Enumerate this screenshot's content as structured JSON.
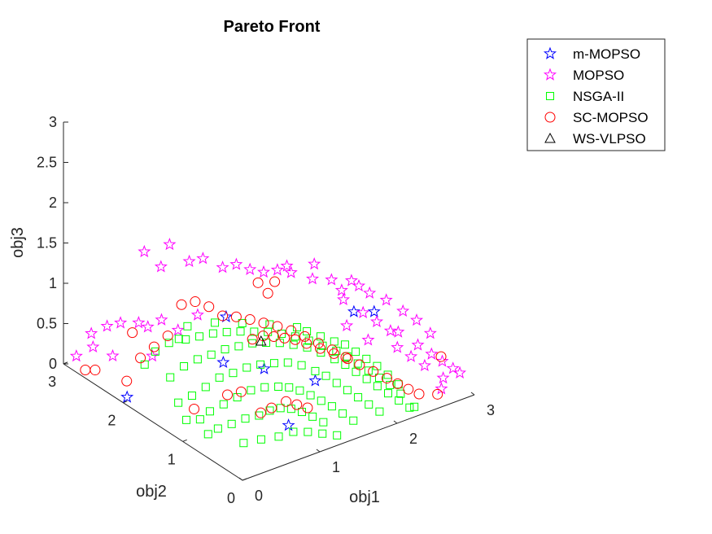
{
  "chart_data": {
    "type": "scatter",
    "title": "Pareto Front",
    "xlabel": "obj1",
    "ylabel": "obj2",
    "zlabel": "obj3",
    "xlim": [
      0,
      3
    ],
    "ylim": [
      0,
      3
    ],
    "zlim": [
      0,
      3
    ],
    "xticks": [
      "0",
      "1",
      "2",
      "3"
    ],
    "yticks": [
      "0",
      "1",
      "2",
      "3"
    ],
    "zticks": [
      "0",
      "0.5",
      "1",
      "1.5",
      "2",
      "2.5",
      "3"
    ],
    "grid": false,
    "legend_position": "top-right",
    "series": [
      {
        "name": "m-MOPSO",
        "marker": "star",
        "color": "#0000ff",
        "points": [
          [
            0.05,
            2.0,
            0.05
          ],
          [
            0.6,
            1.1,
            0.72
          ],
          [
            2.05,
            0.45,
            1.15
          ],
          [
            1.75,
            0.4,
            1.28
          ],
          [
            1.1,
            1.7,
            0.82
          ],
          [
            0.55,
            0.35,
            1.02
          ],
          [
            0.75,
            0.2,
            0.32
          ],
          [
            1.25,
            0.4,
            0.6
          ]
        ]
      },
      {
        "name": "MOPSO",
        "marker": "star",
        "color": "#ff00ff",
        "points": [
          [
            0.05,
            2.6,
            0.55
          ],
          [
            0.1,
            2.4,
            0.72
          ],
          [
            0.12,
            2.2,
            0.85
          ],
          [
            0.2,
            2.0,
            0.92
          ],
          [
            0.15,
            2.7,
            0.3
          ],
          [
            0.3,
            1.9,
            0.52
          ],
          [
            0.05,
            2.85,
            0.15
          ],
          [
            0.25,
            2.5,
            0.25
          ],
          [
            0.4,
            1.6,
            0.95
          ],
          [
            0.5,
            1.4,
            1.2
          ],
          [
            0.6,
            2.0,
            1.75
          ],
          [
            0.7,
            1.8,
            1.6
          ],
          [
            0.8,
            1.7,
            1.65
          ],
          [
            0.9,
            1.5,
            1.6
          ],
          [
            1.0,
            1.4,
            1.65
          ],
          [
            1.1,
            1.3,
            1.6
          ],
          [
            1.2,
            1.2,
            1.58
          ],
          [
            1.3,
            1.1,
            1.62
          ],
          [
            1.4,
            1.0,
            1.6
          ],
          [
            1.5,
            1.2,
            1.55
          ],
          [
            0.35,
            2.1,
            1.7
          ],
          [
            0.45,
            1.95,
            1.55
          ],
          [
            1.6,
            0.9,
            1.5
          ],
          [
            1.7,
            1.0,
            1.6
          ],
          [
            1.9,
            0.8,
            1.3
          ],
          [
            2.0,
            0.9,
            1.1
          ],
          [
            2.1,
            0.7,
            1.0
          ],
          [
            2.2,
            0.6,
            0.9
          ],
          [
            2.3,
            0.5,
            0.8
          ],
          [
            2.4,
            0.5,
            0.75
          ],
          [
            2.5,
            0.3,
            0.65
          ],
          [
            2.6,
            0.2,
            0.55
          ],
          [
            2.7,
            0.15,
            0.45
          ],
          [
            2.8,
            0.1,
            0.35
          ],
          [
            2.85,
            0.05,
            0.3
          ],
          [
            2.5,
            0.55,
            0.95
          ],
          [
            2.6,
            0.45,
            0.85
          ],
          [
            2.7,
            0.35,
            0.7
          ],
          [
            2.4,
            0.7,
            1.05
          ],
          [
            2.3,
            0.85,
            1.1
          ],
          [
            2.2,
            0.9,
            1.2
          ],
          [
            2.0,
            1.1,
            1.25
          ],
          [
            1.95,
            0.7,
            1.45
          ],
          [
            2.75,
            0.2,
            0.2
          ],
          [
            2.65,
            0.1,
            0.15
          ],
          [
            2.55,
            0.25,
            0.4
          ],
          [
            2.45,
            0.35,
            0.5
          ],
          [
            2.35,
            0.45,
            0.6
          ],
          [
            1.85,
            0.65,
            0.95
          ],
          [
            2.05,
            0.55,
            0.75
          ],
          [
            0.55,
            2.3,
            0.6
          ],
          [
            0.65,
            2.2,
            0.7
          ]
        ]
      },
      {
        "name": "NSGA-II",
        "marker": "square",
        "color": "#00ff00",
        "points": [
          [
            0.3,
            1.6,
            0.4
          ],
          [
            0.4,
            1.5,
            0.55
          ],
          [
            0.5,
            1.4,
            0.65
          ],
          [
            0.6,
            1.3,
            0.72
          ],
          [
            0.7,
            1.2,
            0.8
          ],
          [
            0.8,
            1.1,
            0.85
          ],
          [
            0.9,
            1.0,
            0.9
          ],
          [
            1.0,
            0.9,
            0.92
          ],
          [
            1.1,
            0.8,
            0.93
          ],
          [
            1.2,
            0.7,
            0.92
          ],
          [
            1.3,
            0.6,
            0.9
          ],
          [
            1.4,
            0.5,
            0.85
          ],
          [
            1.5,
            0.4,
            0.78
          ],
          [
            1.6,
            0.35,
            0.7
          ],
          [
            1.7,
            0.3,
            0.6
          ],
          [
            1.8,
            0.25,
            0.5
          ],
          [
            1.9,
            0.2,
            0.4
          ],
          [
            2.0,
            0.15,
            0.3
          ],
          [
            2.1,
            0.1,
            0.2
          ],
          [
            2.2,
            0.05,
            0.1
          ],
          [
            0.35,
            1.3,
            0.3
          ],
          [
            0.45,
            1.2,
            0.42
          ],
          [
            0.55,
            1.1,
            0.55
          ],
          [
            0.65,
            1.0,
            0.62
          ],
          [
            0.75,
            0.9,
            0.7
          ],
          [
            0.85,
            0.8,
            0.75
          ],
          [
            0.95,
            0.7,
            0.78
          ],
          [
            1.05,
            0.6,
            0.8
          ],
          [
            1.15,
            0.5,
            0.78
          ],
          [
            1.25,
            0.4,
            0.72
          ],
          [
            1.35,
            0.35,
            0.65
          ],
          [
            1.45,
            0.3,
            0.55
          ],
          [
            1.55,
            0.25,
            0.45
          ],
          [
            1.65,
            0.2,
            0.35
          ],
          [
            1.75,
            0.15,
            0.25
          ],
          [
            1.85,
            0.1,
            0.15
          ],
          [
            0.25,
            1.4,
            0.2
          ],
          [
            0.35,
            1.0,
            0.25
          ],
          [
            0.45,
            0.9,
            0.35
          ],
          [
            0.55,
            0.8,
            0.45
          ],
          [
            0.65,
            0.7,
            0.55
          ],
          [
            0.75,
            0.6,
            0.6
          ],
          [
            0.85,
            0.5,
            0.62
          ],
          [
            0.95,
            0.45,
            0.6
          ],
          [
            1.05,
            0.4,
            0.55
          ],
          [
            1.15,
            0.35,
            0.48
          ],
          [
            1.25,
            0.3,
            0.4
          ],
          [
            1.35,
            0.25,
            0.32
          ],
          [
            1.45,
            0.2,
            0.22
          ],
          [
            1.55,
            0.15,
            0.12
          ],
          [
            0.3,
            0.8,
            0.15
          ],
          [
            0.4,
            0.7,
            0.22
          ],
          [
            0.5,
            0.6,
            0.3
          ],
          [
            0.6,
            0.5,
            0.35
          ],
          [
            0.7,
            0.45,
            0.4
          ],
          [
            0.8,
            0.4,
            0.42
          ],
          [
            0.9,
            0.35,
            0.4
          ],
          [
            1.0,
            0.3,
            0.35
          ],
          [
            1.1,
            0.25,
            0.28
          ],
          [
            1.2,
            0.2,
            0.2
          ],
          [
            0.5,
            1.6,
            0.8
          ],
          [
            0.6,
            1.5,
            0.85
          ],
          [
            0.7,
            1.4,
            0.9
          ],
          [
            0.8,
            1.3,
            0.93
          ],
          [
            0.9,
            1.2,
            0.95
          ],
          [
            1.0,
            1.1,
            0.96
          ],
          [
            1.1,
            1.0,
            0.97
          ],
          [
            1.2,
            0.9,
            0.96
          ],
          [
            1.3,
            0.8,
            0.94
          ],
          [
            1.4,
            0.7,
            0.9
          ],
          [
            1.5,
            0.6,
            0.85
          ],
          [
            1.6,
            0.5,
            0.8
          ],
          [
            1.7,
            0.45,
            0.72
          ],
          [
            1.8,
            0.4,
            0.62
          ],
          [
            1.9,
            0.35,
            0.52
          ],
          [
            2.0,
            0.3,
            0.42
          ],
          [
            2.1,
            0.25,
            0.32
          ],
          [
            2.2,
            0.2,
            0.2
          ],
          [
            0.2,
            1.9,
            0.45
          ],
          [
            0.3,
            1.85,
            0.6
          ],
          [
            0.4,
            1.75,
            0.72
          ],
          [
            0.45,
            1.65,
            0.8
          ],
          [
            0.2,
            1.2,
            0.1
          ],
          [
            0.3,
            1.1,
            0.12
          ],
          [
            0.25,
            0.9,
            0.05
          ],
          [
            0.4,
            0.5,
            0.08
          ],
          [
            0.55,
            0.4,
            0.12
          ],
          [
            0.7,
            0.3,
            0.15
          ],
          [
            0.85,
            0.25,
            0.18
          ],
          [
            1.0,
            0.2,
            0.15
          ],
          [
            1.15,
            0.15,
            0.1
          ],
          [
            1.3,
            0.1,
            0.05
          ],
          [
            1.45,
            0.8,
            0.95
          ],
          [
            1.55,
            0.7,
            0.9
          ],
          [
            1.65,
            0.6,
            0.85
          ],
          [
            1.75,
            0.55,
            0.8
          ],
          [
            1.85,
            0.5,
            0.7
          ],
          [
            1.95,
            0.45,
            0.6
          ],
          [
            2.05,
            0.4,
            0.5
          ],
          [
            2.15,
            0.35,
            0.38
          ],
          [
            2.25,
            0.3,
            0.25
          ],
          [
            2.3,
            0.1,
            0.05
          ],
          [
            1.0,
            1.3,
            0.97
          ],
          [
            1.2,
            1.1,
            0.98
          ],
          [
            1.4,
            0.9,
            0.97
          ],
          [
            0.8,
            1.5,
            0.95
          ],
          [
            0.6,
            1.7,
            0.88
          ]
        ]
      },
      {
        "name": "SC-MOPSO",
        "marker": "circle",
        "color": "#ff0000",
        "points": [
          [
            0.05,
            2.7,
            0.05
          ],
          [
            0.1,
            2.6,
            0.08
          ],
          [
            0.2,
            2.2,
            0.1
          ],
          [
            0.3,
            2.1,
            0.4
          ],
          [
            0.4,
            2.0,
            0.55
          ],
          [
            0.5,
            1.9,
            0.7
          ],
          [
            0.6,
            1.8,
            1.1
          ],
          [
            0.7,
            1.7,
            1.15
          ],
          [
            0.8,
            1.6,
            1.1
          ],
          [
            0.9,
            1.5,
            1.0
          ],
          [
            1.0,
            1.4,
            1.0
          ],
          [
            1.1,
            1.3,
            0.98
          ],
          [
            1.2,
            1.2,
            0.95
          ],
          [
            1.3,
            1.1,
            0.92
          ],
          [
            1.4,
            1.0,
            0.88
          ],
          [
            1.5,
            0.9,
            0.82
          ],
          [
            1.6,
            0.8,
            0.75
          ],
          [
            1.7,
            0.7,
            0.68
          ],
          [
            1.8,
            0.6,
            0.6
          ],
          [
            1.9,
            0.5,
            0.52
          ],
          [
            2.0,
            0.4,
            0.45
          ],
          [
            2.1,
            0.3,
            0.38
          ],
          [
            2.2,
            0.25,
            0.3
          ],
          [
            2.3,
            0.2,
            0.22
          ],
          [
            2.4,
            0.15,
            0.15
          ],
          [
            2.6,
            0.1,
            0.1
          ],
          [
            2.8,
            0.3,
            0.4
          ],
          [
            1.05,
            1.1,
            1.55
          ],
          [
            1.1,
            1.0,
            1.45
          ],
          [
            1.15,
            0.95,
            1.6
          ],
          [
            0.9,
            1.0,
            0.95
          ],
          [
            1.0,
            0.95,
            0.98
          ],
          [
            1.1,
            0.9,
            0.96
          ],
          [
            1.2,
            0.85,
            0.93
          ],
          [
            1.3,
            0.8,
            0.9
          ],
          [
            0.95,
            0.5,
            0.4
          ],
          [
            1.05,
            0.45,
            0.35
          ],
          [
            1.15,
            0.4,
            0.3
          ],
          [
            0.7,
            0.6,
            0.3
          ],
          [
            0.8,
            0.55,
            0.35
          ],
          [
            0.5,
            0.9,
            0.45
          ],
          [
            0.6,
            0.8,
            0.5
          ],
          [
            0.3,
            1.2,
            0.2
          ],
          [
            0.35,
            2.3,
            0.6
          ],
          [
            1.6,
            1.0,
            0.65
          ],
          [
            1.7,
            0.9,
            0.6
          ],
          [
            1.8,
            0.8,
            0.55
          ],
          [
            1.9,
            0.7,
            0.5
          ]
        ]
      },
      {
        "name": "WS-VLPSO",
        "marker": "triangle",
        "color": "#000000",
        "points": [
          [
            1.05,
            1.05,
            0.85
          ]
        ]
      }
    ]
  }
}
